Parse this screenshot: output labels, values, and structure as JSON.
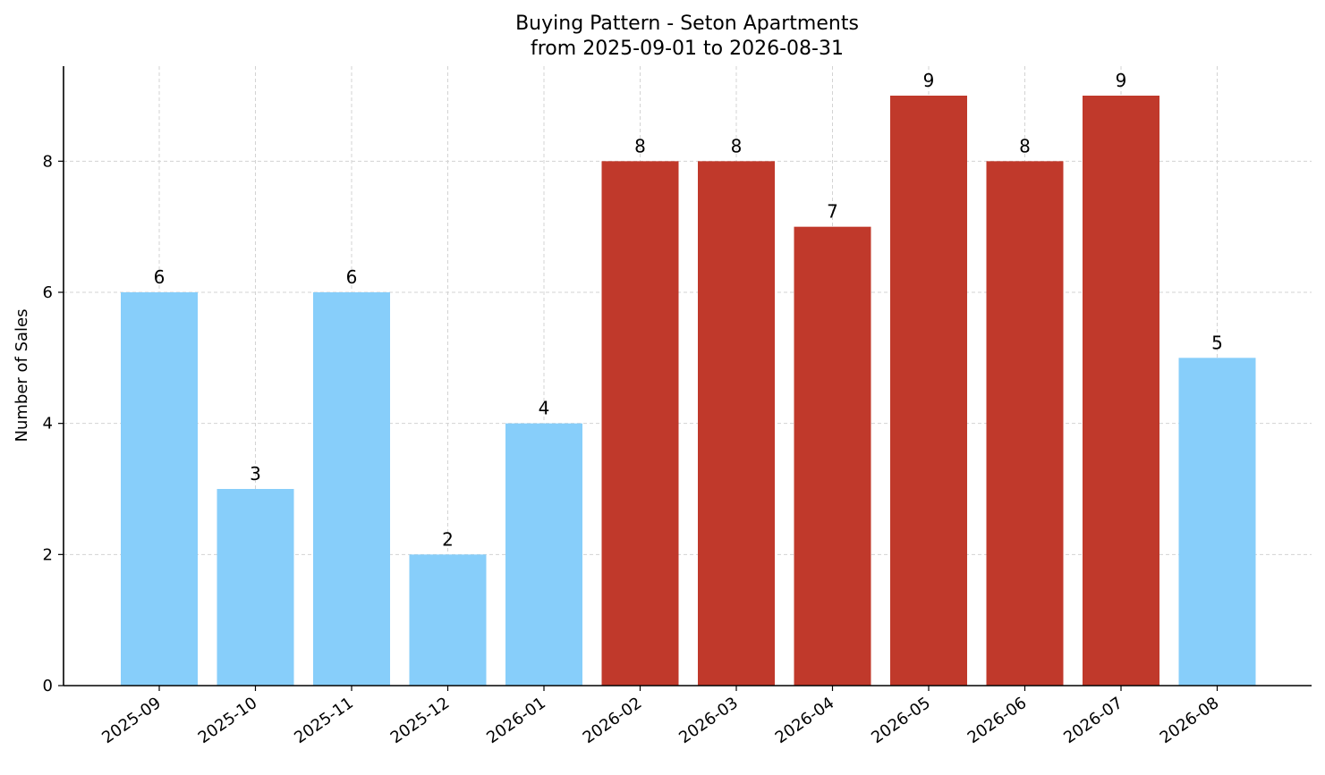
{
  "chart_data": {
    "type": "bar",
    "title": "Buying Pattern - Seton Apartments",
    "subtitle": "from 2025-09-01 to 2026-08-31",
    "xlabel": "",
    "ylabel": "Number of Sales",
    "categories": [
      "2025-09",
      "2025-10",
      "2025-11",
      "2025-12",
      "2026-01",
      "2026-02",
      "2026-03",
      "2026-04",
      "2026-05",
      "2026-06",
      "2026-07",
      "2026-08"
    ],
    "values": [
      6,
      3,
      6,
      2,
      4,
      8,
      8,
      7,
      9,
      8,
      9,
      5
    ],
    "bar_colors": [
      "#87CEFA",
      "#87CEFA",
      "#87CEFA",
      "#87CEFA",
      "#87CEFA",
      "#C0392B",
      "#C0392B",
      "#C0392B",
      "#C0392B",
      "#C0392B",
      "#C0392B",
      "#87CEFA"
    ],
    "ylim": [
      0,
      9.45
    ],
    "yticks": [
      0,
      2,
      4,
      6,
      8
    ],
    "grid": true,
    "data_labels": true,
    "colors": {
      "low": "#87CEFA",
      "high": "#C0392B"
    }
  }
}
